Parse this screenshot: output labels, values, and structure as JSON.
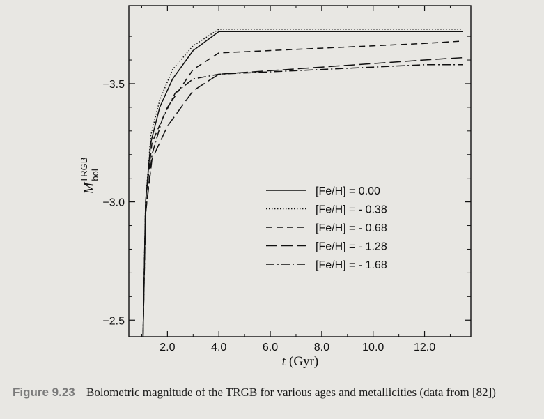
{
  "caption": {
    "label": "Figure 9.23",
    "text": "Bolometric magnitude of the TRGB for various ages and metallicities (data from [82])"
  },
  "chart_data": {
    "type": "line",
    "xlabel_symbol": "t",
    "xlabel_unit": "(Gyr)",
    "ylabel_symbol": "M",
    "ylabel_sup": "TRGB",
    "ylabel_sub": "bol",
    "xlim": [
      0.5,
      13.8
    ],
    "ylim": [
      -2.43,
      -3.83
    ],
    "y_inverted": true,
    "xticks": [
      "2.0",
      "4.0",
      "6.0",
      "8.0",
      "10.0",
      "12.0"
    ],
    "yticks": [
      "-3.5",
      "-3.0",
      "-2.5"
    ],
    "legend_position": "center-right",
    "series": [
      {
        "name": "[Fe/H] = 0.00",
        "style": "solid",
        "x": [
          1.05,
          1.15,
          1.35,
          1.7,
          2.2,
          3.0,
          4.0,
          6.0,
          8.0,
          10.0,
          12.0,
          13.5
        ],
        "y": [
          -2.43,
          -3.0,
          -3.25,
          -3.4,
          -3.52,
          -3.64,
          -3.72,
          -3.72,
          -3.72,
          -3.72,
          -3.72,
          -3.72
        ]
      },
      {
        "name": "[Fe/H] = - 0.38",
        "style": "dotted",
        "x": [
          1.05,
          1.15,
          1.35,
          1.7,
          2.2,
          3.0,
          4.0,
          6.0,
          8.0,
          10.0,
          12.0,
          13.5
        ],
        "y": [
          -2.43,
          -3.0,
          -3.28,
          -3.43,
          -3.56,
          -3.66,
          -3.73,
          -3.73,
          -3.73,
          -3.73,
          -3.73,
          -3.73
        ]
      },
      {
        "name": "[Fe/H] = - 0.68",
        "style": "dashed",
        "x": [
          1.05,
          1.15,
          1.4,
          2.0,
          3.0,
          4.0,
          6.0,
          8.0,
          10.0,
          12.0,
          13.5
        ],
        "y": [
          -2.43,
          -3.0,
          -3.25,
          -3.4,
          -3.56,
          -3.63,
          -3.64,
          -3.65,
          -3.66,
          -3.67,
          -3.68
        ]
      },
      {
        "name": "[Fe/H] = - 1.28",
        "style": "long-dash",
        "x": [
          1.05,
          1.15,
          1.4,
          2.0,
          3.0,
          4.0,
          6.0,
          8.0,
          10.0,
          12.0,
          13.5
        ],
        "y": [
          -2.43,
          -2.95,
          -3.18,
          -3.32,
          -3.47,
          -3.54,
          -3.555,
          -3.57,
          -3.585,
          -3.6,
          -3.61
        ]
      },
      {
        "name": "[Fe/H] = - 1.68",
        "style": "dash-dot",
        "x": [
          1.05,
          1.15,
          1.4,
          1.8,
          2.3,
          3.0,
          4.0,
          6.0,
          8.0,
          10.0,
          12.0,
          13.5
        ],
        "y": [
          -2.43,
          -2.95,
          -3.2,
          -3.35,
          -3.46,
          -3.52,
          -3.54,
          -3.55,
          -3.56,
          -3.57,
          -3.58,
          -3.58
        ]
      }
    ]
  },
  "colors": {
    "ink": "#111111",
    "paper": "#e8e7e3",
    "label_grey": "#7a7a7a"
  }
}
